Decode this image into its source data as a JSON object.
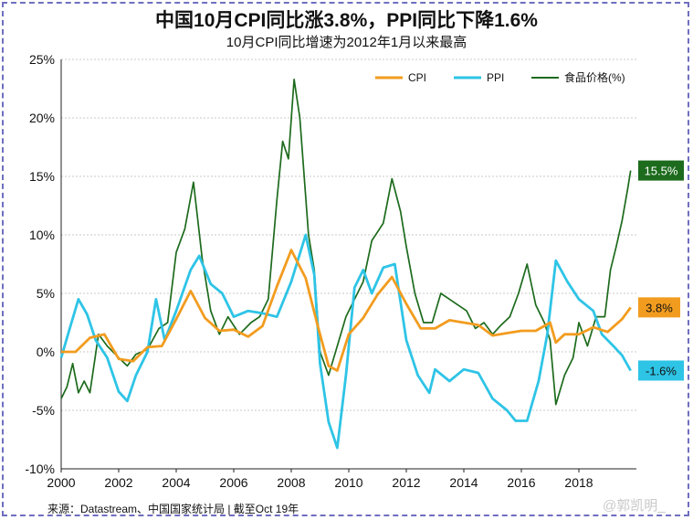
{
  "header": {
    "title": "中国10月CPI同比涨3.8%，PPI同比下降1.6%",
    "subtitle": "10月CPI同比增速为2012年1月以来最高"
  },
  "footer": {
    "source": "来源：Datastream、中国国家统计局 | 截至Oct 19年",
    "watermark": "@郭凯明_"
  },
  "colors": {
    "cpi": "#f29c1f",
    "ppi": "#2ec4e6",
    "food": "#1d6b1d",
    "grid": "#c8c8c8",
    "frame": "#6f6fc0"
  },
  "chart_data": {
    "type": "line",
    "title": "中国10月CPI同比涨3.8%，PPI同比下降1.6%",
    "subtitle": "10月CPI同比增速为2012年1月以来最高",
    "xlabel": "",
    "ylabel": "",
    "xlim": [
      2000,
      2020
    ],
    "ylim": [
      -10,
      25
    ],
    "x_ticks": [
      "2000",
      "2002",
      "2004",
      "2006",
      "2008",
      "2010",
      "2012",
      "2014",
      "2016",
      "2018"
    ],
    "y_ticks": [
      "25%",
      "20%",
      "15%",
      "10%",
      "5%",
      "0%",
      "-5%",
      "-10%"
    ],
    "grid": "horizontal dotted",
    "legend_position": "top-right",
    "series": [
      {
        "name": "CPI",
        "color": "#f29c1f",
        "end_label": "3.8%",
        "points": [
          [
            2000.0,
            0.0
          ],
          [
            2000.5,
            0.0
          ],
          [
            2001.0,
            1.2
          ],
          [
            2001.5,
            1.5
          ],
          [
            2002.0,
            -0.6
          ],
          [
            2002.5,
            -0.8
          ],
          [
            2003.0,
            0.4
          ],
          [
            2003.5,
            0.5
          ],
          [
            2004.0,
            2.8
          ],
          [
            2004.5,
            5.2
          ],
          [
            2005.0,
            2.9
          ],
          [
            2005.5,
            1.8
          ],
          [
            2006.0,
            1.9
          ],
          [
            2006.5,
            1.3
          ],
          [
            2007.0,
            2.2
          ],
          [
            2007.5,
            5.6
          ],
          [
            2008.0,
            8.7
          ],
          [
            2008.5,
            6.3
          ],
          [
            2008.9,
            2.4
          ],
          [
            2009.3,
            -1.2
          ],
          [
            2009.6,
            -1.6
          ],
          [
            2010.0,
            1.5
          ],
          [
            2010.5,
            2.9
          ],
          [
            2011.0,
            4.9
          ],
          [
            2011.5,
            6.4
          ],
          [
            2012.0,
            4.1
          ],
          [
            2012.5,
            2.0
          ],
          [
            2013.0,
            2.0
          ],
          [
            2013.5,
            2.7
          ],
          [
            2014.0,
            2.5
          ],
          [
            2014.5,
            2.3
          ],
          [
            2015.0,
            1.4
          ],
          [
            2015.5,
            1.6
          ],
          [
            2016.0,
            1.8
          ],
          [
            2016.5,
            1.8
          ],
          [
            2017.0,
            2.5
          ],
          [
            2017.2,
            0.8
          ],
          [
            2017.5,
            1.5
          ],
          [
            2018.0,
            1.5
          ],
          [
            2018.5,
            2.1
          ],
          [
            2019.0,
            1.7
          ],
          [
            2019.5,
            2.8
          ],
          [
            2019.8,
            3.8
          ]
        ]
      },
      {
        "name": "PPI",
        "color": "#2ec4e6",
        "end_label": "-1.6%",
        "points": [
          [
            2000.0,
            -0.5
          ],
          [
            2000.3,
            2.0
          ],
          [
            2000.6,
            4.5
          ],
          [
            2000.9,
            3.2
          ],
          [
            2001.2,
            1.0
          ],
          [
            2001.6,
            -0.5
          ],
          [
            2002.0,
            -3.4
          ],
          [
            2002.3,
            -4.2
          ],
          [
            2002.6,
            -2.0
          ],
          [
            2003.0,
            0.0
          ],
          [
            2003.3,
            4.5
          ],
          [
            2003.6,
            1.0
          ],
          [
            2004.0,
            3.5
          ],
          [
            2004.5,
            7.0
          ],
          [
            2004.8,
            8.2
          ],
          [
            2005.2,
            5.8
          ],
          [
            2005.6,
            5.0
          ],
          [
            2006.0,
            3.0
          ],
          [
            2006.5,
            3.5
          ],
          [
            2007.0,
            3.3
          ],
          [
            2007.5,
            3.0
          ],
          [
            2008.0,
            6.0
          ],
          [
            2008.5,
            10.0
          ],
          [
            2008.8,
            6.6
          ],
          [
            2009.0,
            -1.0
          ],
          [
            2009.3,
            -6.0
          ],
          [
            2009.6,
            -8.2
          ],
          [
            2009.9,
            -2.0
          ],
          [
            2010.2,
            5.5
          ],
          [
            2010.5,
            7.0
          ],
          [
            2010.8,
            5.0
          ],
          [
            2011.2,
            7.2
          ],
          [
            2011.6,
            7.5
          ],
          [
            2012.0,
            1.0
          ],
          [
            2012.4,
            -2.0
          ],
          [
            2012.8,
            -3.5
          ],
          [
            2013.0,
            -1.5
          ],
          [
            2013.5,
            -2.5
          ],
          [
            2014.0,
            -1.5
          ],
          [
            2014.5,
            -1.8
          ],
          [
            2015.0,
            -4.0
          ],
          [
            2015.5,
            -5.0
          ],
          [
            2015.8,
            -5.9
          ],
          [
            2016.2,
            -5.9
          ],
          [
            2016.6,
            -2.5
          ],
          [
            2016.9,
            1.5
          ],
          [
            2017.2,
            7.8
          ],
          [
            2017.6,
            6.0
          ],
          [
            2018.0,
            4.5
          ],
          [
            2018.5,
            3.5
          ],
          [
            2018.8,
            1.5
          ],
          [
            2019.2,
            0.5
          ],
          [
            2019.5,
            -0.3
          ],
          [
            2019.8,
            -1.6
          ]
        ]
      },
      {
        "name": "食品价格(%)",
        "color": "#1d6b1d",
        "end_label": "15.5%",
        "points": [
          [
            2000.0,
            -4.0
          ],
          [
            2000.2,
            -3.0
          ],
          [
            2000.4,
            -1.0
          ],
          [
            2000.6,
            -3.5
          ],
          [
            2000.8,
            -2.5
          ],
          [
            2001.0,
            -3.5
          ],
          [
            2001.3,
            1.5
          ],
          [
            2001.6,
            0.5
          ],
          [
            2002.0,
            -0.5
          ],
          [
            2002.3,
            -1.2
          ],
          [
            2002.6,
            -0.2
          ],
          [
            2003.0,
            0.2
          ],
          [
            2003.4,
            2.0
          ],
          [
            2003.7,
            2.5
          ],
          [
            2004.0,
            8.5
          ],
          [
            2004.3,
            10.5
          ],
          [
            2004.6,
            14.5
          ],
          [
            2004.9,
            8.0
          ],
          [
            2005.2,
            3.5
          ],
          [
            2005.5,
            1.5
          ],
          [
            2005.8,
            3.0
          ],
          [
            2006.2,
            1.5
          ],
          [
            2006.6,
            2.5
          ],
          [
            2006.9,
            3.0
          ],
          [
            2007.2,
            4.5
          ],
          [
            2007.5,
            13.0
          ],
          [
            2007.7,
            18.0
          ],
          [
            2007.9,
            16.5
          ],
          [
            2008.1,
            23.3
          ],
          [
            2008.3,
            20.0
          ],
          [
            2008.6,
            10.0
          ],
          [
            2008.8,
            7.0
          ],
          [
            2009.0,
            0.0
          ],
          [
            2009.3,
            -2.0
          ],
          [
            2009.6,
            0.5
          ],
          [
            2009.9,
            3.0
          ],
          [
            2010.2,
            4.5
          ],
          [
            2010.5,
            6.0
          ],
          [
            2010.8,
            9.5
          ],
          [
            2011.2,
            11.0
          ],
          [
            2011.5,
            14.8
          ],
          [
            2011.8,
            12.0
          ],
          [
            2012.0,
            9.0
          ],
          [
            2012.3,
            5.0
          ],
          [
            2012.6,
            2.5
          ],
          [
            2012.9,
            2.5
          ],
          [
            2013.2,
            5.0
          ],
          [
            2013.5,
            4.5
          ],
          [
            2013.8,
            4.0
          ],
          [
            2014.1,
            3.5
          ],
          [
            2014.4,
            2.0
          ],
          [
            2014.7,
            2.5
          ],
          [
            2015.0,
            1.5
          ],
          [
            2015.3,
            2.3
          ],
          [
            2015.6,
            3.0
          ],
          [
            2015.9,
            5.0
          ],
          [
            2016.2,
            7.5
          ],
          [
            2016.5,
            4.0
          ],
          [
            2016.8,
            2.5
          ],
          [
            2017.0,
            1.0
          ],
          [
            2017.2,
            -4.5
          ],
          [
            2017.5,
            -2.0
          ],
          [
            2017.8,
            -0.5
          ],
          [
            2018.0,
            2.5
          ],
          [
            2018.3,
            0.5
          ],
          [
            2018.6,
            3.0
          ],
          [
            2018.9,
            3.0
          ],
          [
            2019.1,
            7.0
          ],
          [
            2019.3,
            9.0
          ],
          [
            2019.5,
            11.2
          ],
          [
            2019.7,
            14.0
          ],
          [
            2019.8,
            15.5
          ]
        ]
      }
    ]
  }
}
